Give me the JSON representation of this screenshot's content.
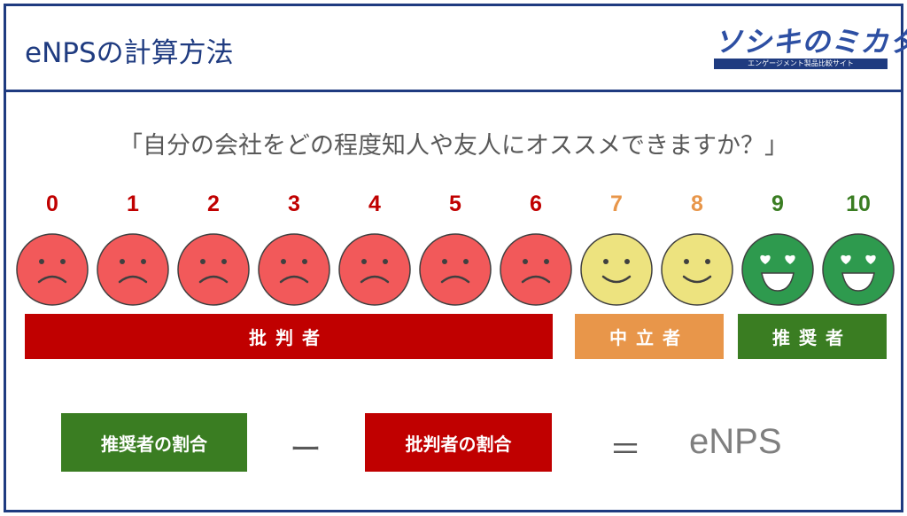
{
  "title": "eNPSの計算方法",
  "logo": {
    "text": "ソシキのミカタ",
    "subtitle": "エンゲージメント製品比較サイト"
  },
  "question": "「自分の会社をどの程度知人や友人にオススメできますか？」",
  "colors": {
    "critic": "#c00000",
    "critic_face": "#f2595a",
    "neutral": "#e8964a",
    "neutral_face": "#ede37f",
    "promoter": "#3a7d22",
    "promoter_face": "#2e9a4e",
    "frame": "#1f3b80"
  },
  "scores": [
    {
      "label": "0",
      "group": "critic",
      "face": "sad-face-icon"
    },
    {
      "label": "1",
      "group": "critic",
      "face": "sad-face-icon"
    },
    {
      "label": "2",
      "group": "critic",
      "face": "sad-face-icon"
    },
    {
      "label": "3",
      "group": "critic",
      "face": "sad-face-icon"
    },
    {
      "label": "4",
      "group": "critic",
      "face": "sad-face-icon"
    },
    {
      "label": "5",
      "group": "critic",
      "face": "sad-face-icon"
    },
    {
      "label": "6",
      "group": "critic",
      "face": "sad-face-icon"
    },
    {
      "label": "7",
      "group": "neutral",
      "face": "smile-face-icon"
    },
    {
      "label": "8",
      "group": "neutral",
      "face": "smile-face-icon"
    },
    {
      "label": "9",
      "group": "promoter",
      "face": "heart-eyes-face-icon"
    },
    {
      "label": "10",
      "group": "promoter",
      "face": "heart-eyes-face-icon"
    }
  ],
  "bands": {
    "critic": "批判者",
    "neutral": "中立者",
    "promoter": "推奨者"
  },
  "formula": {
    "promoter_ratio": "推奨者の割合",
    "minus": "ー",
    "critic_ratio": "批判者の割合",
    "equals": "＝",
    "result": "eNPS"
  }
}
